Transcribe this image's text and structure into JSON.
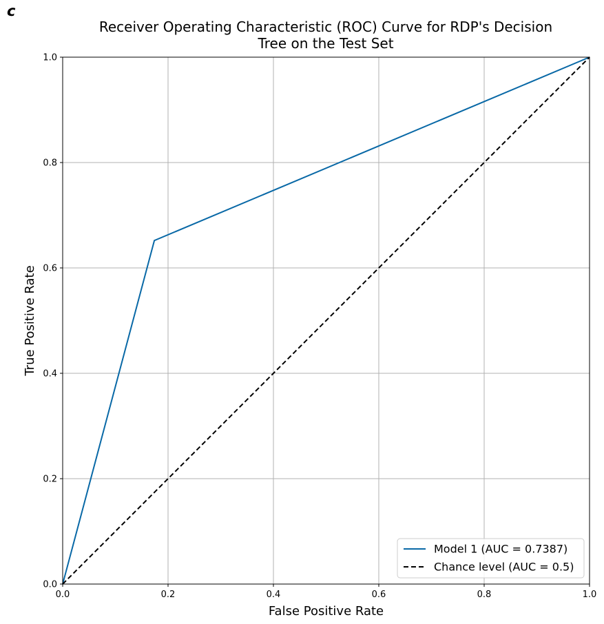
{
  "panel_label": "c",
  "chart_data": {
    "type": "line",
    "title_lines": [
      "Receiver Operating Characteristic (ROC) Curve for RDP's Decision",
      "Tree on the Test Set"
    ],
    "xlabel": "False Positive Rate",
    "ylabel": "True Positive Rate",
    "xlim": [
      0,
      1
    ],
    "ylim": [
      0,
      1
    ],
    "xticks": [
      0.0,
      0.2,
      0.4,
      0.6,
      0.8,
      1.0
    ],
    "yticks": [
      0.0,
      0.2,
      0.4,
      0.6,
      0.8,
      1.0
    ],
    "xtick_labels": [
      "0.0",
      "0.2",
      "0.4",
      "0.6",
      "0.8",
      "1.0"
    ],
    "ytick_labels": [
      "0.0",
      "0.2",
      "0.4",
      "0.6",
      "0.8",
      "1.0"
    ],
    "grid": true,
    "legend_position": "lower-right",
    "series": [
      {
        "name": "Model 1 (AUC = 0.7387)",
        "color": "#0868a6",
        "style": "solid",
        "x": [
          0.0,
          0.174,
          1.0
        ],
        "y": [
          0.0,
          0.652,
          1.0
        ]
      },
      {
        "name": "Chance level (AUC = 0.5)",
        "color": "#000000",
        "style": "dashed",
        "x": [
          0.0,
          1.0
        ],
        "y": [
          0.0,
          1.0
        ]
      }
    ]
  }
}
